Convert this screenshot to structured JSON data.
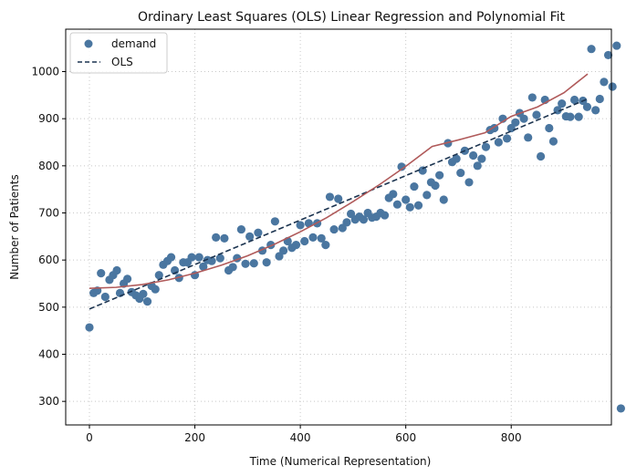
{
  "chart_data": {
    "type": "scatter",
    "title": "Ordinary Least Squares (OLS) Linear Regression and Polynomial Fit",
    "xlabel": "Time (Numerical Representation)",
    "ylabel": "Number of Patients",
    "xlim": [
      -45,
      990
    ],
    "ylim": [
      250,
      1090
    ],
    "xticks": [
      0,
      200,
      400,
      600,
      800
    ],
    "yticks": [
      300,
      400,
      500,
      600,
      700,
      800,
      900,
      1000
    ],
    "grid": true,
    "legend_position": "top-left",
    "colors": {
      "demand": "#4a76a0",
      "ols": "#1c3450",
      "poly": "#b05a5a",
      "grid": "#c8c8c8"
    },
    "series": [
      {
        "name": "demand",
        "kind": "scatter",
        "points": [
          [
            0,
            457
          ],
          [
            8,
            530
          ],
          [
            15,
            535
          ],
          [
            22,
            572
          ],
          [
            30,
            522
          ],
          [
            38,
            558
          ],
          [
            45,
            568
          ],
          [
            52,
            578
          ],
          [
            58,
            530
          ],
          [
            65,
            550
          ],
          [
            72,
            560
          ],
          [
            80,
            532
          ],
          [
            88,
            525
          ],
          [
            95,
            518
          ],
          [
            102,
            528
          ],
          [
            110,
            512
          ],
          [
            118,
            545
          ],
          [
            125,
            538
          ],
          [
            132,
            568
          ],
          [
            140,
            590
          ],
          [
            148,
            598
          ],
          [
            155,
            606
          ],
          [
            162,
            578
          ],
          [
            170,
            562
          ],
          [
            178,
            595
          ],
          [
            186,
            595
          ],
          [
            194,
            606
          ],
          [
            200,
            568
          ],
          [
            208,
            606
          ],
          [
            216,
            586
          ],
          [
            224,
            600
          ],
          [
            232,
            598
          ],
          [
            240,
            648
          ],
          [
            248,
            604
          ],
          [
            256,
            646
          ],
          [
            264,
            578
          ],
          [
            272,
            585
          ],
          [
            280,
            604
          ],
          [
            288,
            665
          ],
          [
            296,
            592
          ],
          [
            304,
            650
          ],
          [
            312,
            593
          ],
          [
            320,
            658
          ],
          [
            328,
            620
          ],
          [
            336,
            595
          ],
          [
            344,
            632
          ],
          [
            352,
            682
          ],
          [
            360,
            608
          ],
          [
            368,
            620
          ],
          [
            376,
            640
          ],
          [
            384,
            626
          ],
          [
            392,
            632
          ],
          [
            400,
            674
          ],
          [
            408,
            640
          ],
          [
            416,
            678
          ],
          [
            424,
            648
          ],
          [
            432,
            678
          ],
          [
            440,
            646
          ],
          [
            448,
            632
          ],
          [
            456,
            734
          ],
          [
            464,
            665
          ],
          [
            472,
            730
          ],
          [
            480,
            668
          ],
          [
            488,
            680
          ],
          [
            496,
            698
          ],
          [
            504,
            686
          ],
          [
            512,
            692
          ],
          [
            520,
            686
          ],
          [
            528,
            700
          ],
          [
            536,
            690
          ],
          [
            544,
            692
          ],
          [
            552,
            700
          ],
          [
            560,
            695
          ],
          [
            568,
            732
          ],
          [
            576,
            740
          ],
          [
            584,
            718
          ],
          [
            592,
            798
          ],
          [
            600,
            728
          ],
          [
            608,
            712
          ],
          [
            616,
            756
          ],
          [
            624,
            716
          ],
          [
            632,
            790
          ],
          [
            640,
            738
          ],
          [
            648,
            765
          ],
          [
            656,
            758
          ],
          [
            664,
            780
          ],
          [
            672,
            728
          ],
          [
            680,
            848
          ],
          [
            688,
            808
          ],
          [
            696,
            815
          ],
          [
            704,
            785
          ],
          [
            712,
            832
          ],
          [
            720,
            765
          ],
          [
            728,
            822
          ],
          [
            736,
            800
          ],
          [
            744,
            815
          ],
          [
            752,
            840
          ],
          [
            760,
            876
          ],
          [
            768,
            880
          ],
          [
            776,
            850
          ],
          [
            784,
            900
          ],
          [
            792,
            858
          ],
          [
            800,
            880
          ],
          [
            808,
            892
          ],
          [
            816,
            912
          ],
          [
            824,
            900
          ],
          [
            832,
            860
          ],
          [
            840,
            945
          ],
          [
            848,
            908
          ],
          [
            856,
            820
          ],
          [
            864,
            940
          ],
          [
            872,
            880
          ],
          [
            880,
            852
          ],
          [
            888,
            918
          ],
          [
            896,
            932
          ],
          [
            904,
            905
          ],
          [
            912,
            904
          ],
          [
            920,
            940
          ],
          [
            928,
            904
          ],
          [
            936,
            938
          ],
          [
            944,
            925
          ],
          [
            952,
            1048
          ],
          [
            960,
            918
          ],
          [
            968,
            942
          ],
          [
            976,
            978
          ],
          [
            984,
            1035
          ],
          [
            992,
            968
          ],
          [
            1000,
            1055
          ],
          [
            1008,
            285
          ]
        ]
      },
      {
        "name": "OLS",
        "kind": "line",
        "x": [
          0,
          945
        ],
        "y": [
          496,
          942
        ]
      },
      {
        "name": "",
        "kind": "line",
        "x": [
          0,
          50,
          100,
          150,
          200,
          250,
          300,
          350,
          400,
          450,
          500,
          550,
          600,
          650,
          700,
          750,
          800,
          850,
          900,
          945
        ],
        "y": [
          540,
          542,
          548,
          558,
          572,
          589,
          609,
          633,
          660,
          690,
          724,
          760,
          799,
          841,
          855,
          870,
          905,
          925,
          955,
          995
        ]
      }
    ]
  }
}
